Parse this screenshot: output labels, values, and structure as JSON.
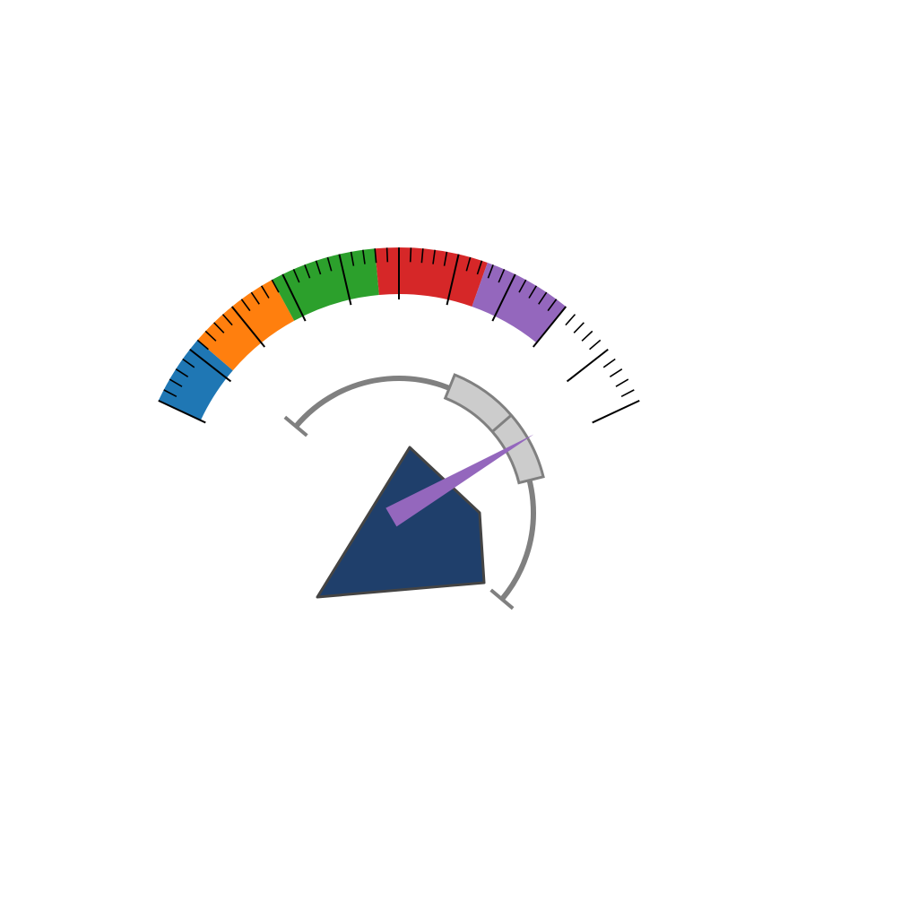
{
  "gauge": {
    "scale_range": [
      0,
      100
    ],
    "color_bands": [
      {
        "from": 0,
        "to": 12,
        "color": "#1f77b4"
      },
      {
        "from": 12,
        "to": 28,
        "color": "#ff7f0e"
      },
      {
        "from": 28,
        "to": 46,
        "color": "#2ca02c"
      },
      {
        "from": 46,
        "to": 65,
        "color": "#d62728"
      },
      {
        "from": 65,
        "to": 80,
        "color": "#9467bd"
      }
    ],
    "major_tick_step": 10,
    "minor_tick_step": 2,
    "inner_ring": {
      "range": [
        0,
        100
      ],
      "highlight_from": 40,
      "highlight_to": 70,
      "highlight_divider": 55,
      "track_color": "#808080",
      "highlight_color": "#cccccc"
    },
    "needle_value": 61,
    "needle_color": "#9467bd",
    "hub_color": "#1f3f6b",
    "hub_border_color": "#444444"
  }
}
